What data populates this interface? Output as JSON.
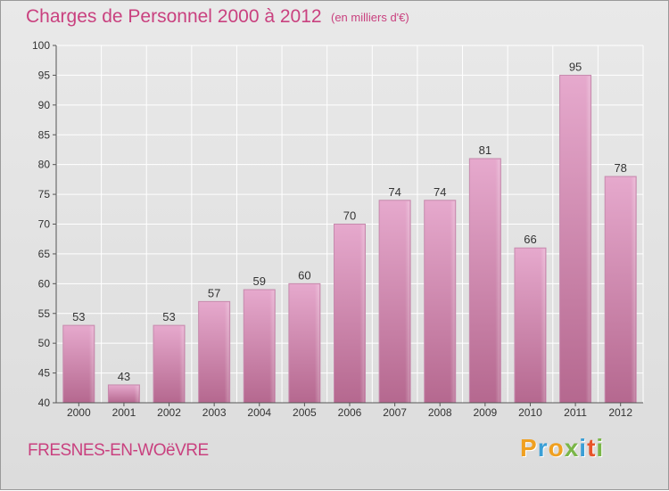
{
  "header": {
    "title": "Charges de Personnel 2000 à 2012",
    "subtitle": "(en milliers d'€)"
  },
  "footer": {
    "commune": "FRESNES-EN-WOëVRE",
    "logo": "Proxiti"
  },
  "colors": {
    "accent": "#c9417f",
    "bar": "#d9a0c0",
    "bar_dark": "#b86b98",
    "background": "#e4e4e4"
  },
  "chart_data": {
    "type": "bar",
    "title": "Charges de Personnel 2000 à 2012",
    "subtitle": "(en milliers d'€)",
    "categories": [
      "2000",
      "2001",
      "2002",
      "2003",
      "2004",
      "2005",
      "2006",
      "2007",
      "2008",
      "2009",
      "2010",
      "2011",
      "2012"
    ],
    "values": [
      53,
      43,
      53,
      57,
      59,
      60,
      70,
      74,
      74,
      81,
      66,
      95,
      78
    ],
    "ylim": [
      40,
      100
    ],
    "yticks": [
      40,
      45,
      50,
      55,
      60,
      65,
      70,
      75,
      80,
      85,
      90,
      95,
      100
    ],
    "grid": true,
    "legend": false
  }
}
